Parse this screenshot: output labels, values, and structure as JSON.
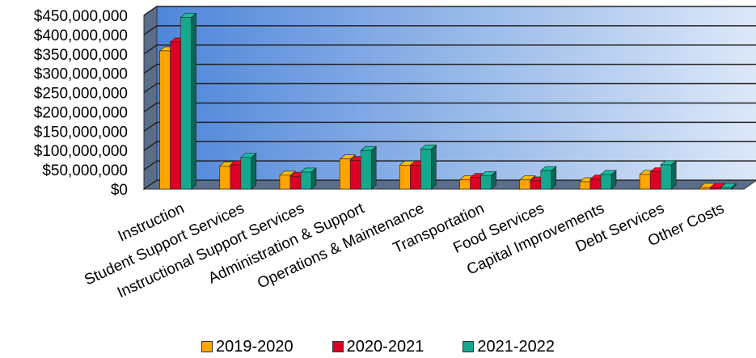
{
  "chart_data": {
    "type": "bar",
    "categories": [
      "Instruction",
      "Student Support Services",
      "Instructional Support Services",
      "Administration & Support",
      "Operations & Maintenance",
      "Transportation",
      "Food Services",
      "Capital Improvements",
      "Debt Services",
      "Other Costs"
    ],
    "series": [
      {
        "name": "2019-2020",
        "color": "#FFA500",
        "values": [
          358000000,
          60000000,
          36000000,
          78000000,
          62000000,
          24000000,
          24000000,
          19000000,
          38000000,
          1000000
        ]
      },
      {
        "name": "2020-2021",
        "color": "#DD0022",
        "values": [
          381000000,
          63000000,
          33000000,
          74000000,
          62000000,
          30000000,
          21000000,
          26000000,
          45000000,
          1000000
        ]
      },
      {
        "name": "2021-2022",
        "color": "#14A88E",
        "values": [
          445000000,
          82000000,
          44000000,
          100000000,
          104000000,
          35000000,
          48000000,
          38000000,
          63000000,
          1000000
        ]
      }
    ],
    "yticks": [
      "$450,000,000",
      "$400,000,000",
      "$350,000,000",
      "$300,000,000",
      "$250,000,000",
      "$200,000,000",
      "$150,000,000",
      "$100,000,000",
      "$50,000,000",
      "$0"
    ],
    "ylim": [
      0,
      450000000
    ],
    "grid": true,
    "legend_position": "bottom",
    "background_gradient": [
      "#4E86D9",
      "#DCE8F8"
    ]
  }
}
